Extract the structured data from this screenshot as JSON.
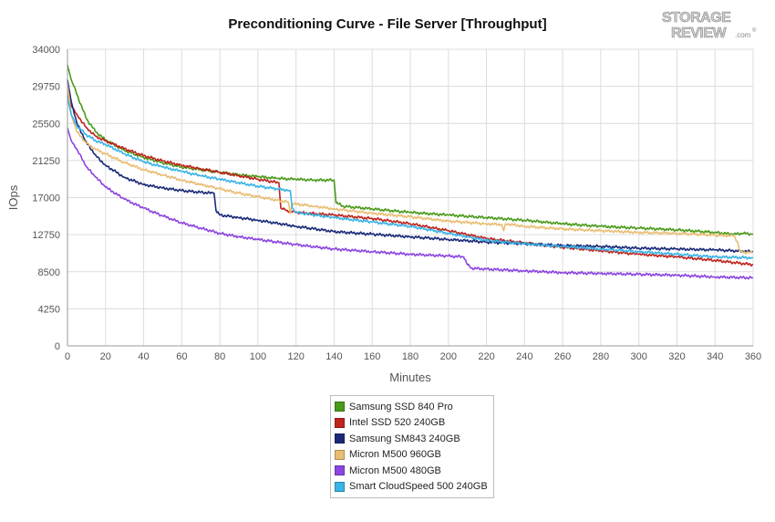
{
  "title": "Preconditioning Curve - File Server [Throughput]",
  "logo": {
    "line1": "STORAGE",
    "line2": "REVIEW",
    "suffix": ".com",
    "mark": "®"
  },
  "chart_data": {
    "type": "line",
    "title": "Preconditioning Curve - File Server [Throughput]",
    "xlabel": "Minutes",
    "ylabel": "IOps",
    "xlim": [
      0,
      360
    ],
    "ylim": [
      0,
      34000
    ],
    "x_ticks": [
      0,
      20,
      40,
      60,
      80,
      100,
      120,
      140,
      160,
      180,
      200,
      220,
      240,
      260,
      280,
      300,
      320,
      340,
      360
    ],
    "y_ticks": [
      0,
      4250,
      8500,
      12750,
      17000,
      21250,
      25500,
      29750,
      34000
    ],
    "grid": true,
    "legend_position": "bottom-center",
    "series": [
      {
        "name": "Samsung SSD 840 Pro",
        "color": "#4a9a1a",
        "points": [
          [
            0,
            32200
          ],
          [
            2,
            30500
          ],
          [
            5,
            28800
          ],
          [
            10,
            26000
          ],
          [
            15,
            24500
          ],
          [
            20,
            23600
          ],
          [
            30,
            22400
          ],
          [
            40,
            21600
          ],
          [
            50,
            21000
          ],
          [
            60,
            20500
          ],
          [
            70,
            20200
          ],
          [
            80,
            19900
          ],
          [
            90,
            19600
          ],
          [
            100,
            19400
          ],
          [
            110,
            19200
          ],
          [
            120,
            19100
          ],
          [
            130,
            19000
          ],
          [
            140,
            19000
          ],
          [
            141,
            16400
          ],
          [
            145,
            16000
          ],
          [
            160,
            15700
          ],
          [
            180,
            15300
          ],
          [
            200,
            15000
          ],
          [
            220,
            14700
          ],
          [
            240,
            14400
          ],
          [
            260,
            14000
          ],
          [
            280,
            13700
          ],
          [
            300,
            13500
          ],
          [
            320,
            13300
          ],
          [
            340,
            13000
          ],
          [
            350,
            12800
          ],
          [
            355,
            12900
          ],
          [
            360,
            12800
          ]
        ]
      },
      {
        "name": "Intel SSD 520 240GB",
        "color": "#c0231c",
        "points": [
          [
            0,
            29000
          ],
          [
            2,
            27500
          ],
          [
            5,
            26500
          ],
          [
            10,
            25000
          ],
          [
            15,
            24000
          ],
          [
            20,
            23500
          ],
          [
            30,
            22600
          ],
          [
            40,
            21800
          ],
          [
            50,
            21200
          ],
          [
            60,
            20700
          ],
          [
            70,
            20300
          ],
          [
            80,
            19900
          ],
          [
            90,
            19500
          ],
          [
            100,
            19100
          ],
          [
            111,
            18700
          ],
          [
            112,
            15800
          ],
          [
            115,
            15500
          ],
          [
            120,
            15300
          ],
          [
            140,
            15000
          ],
          [
            160,
            14600
          ],
          [
            180,
            14000
          ],
          [
            200,
            13200
          ],
          [
            220,
            12300
          ],
          [
            240,
            11800
          ],
          [
            260,
            11300
          ],
          [
            280,
            10900
          ],
          [
            300,
            10500
          ],
          [
            320,
            10200
          ],
          [
            340,
            9800
          ],
          [
            360,
            9300
          ]
        ]
      },
      {
        "name": "Samsung SM843 240GB",
        "color": "#1a2a78",
        "points": [
          [
            0,
            30500
          ],
          [
            2,
            28000
          ],
          [
            5,
            25500
          ],
          [
            10,
            23300
          ],
          [
            15,
            21800
          ],
          [
            20,
            20700
          ],
          [
            30,
            19300
          ],
          [
            40,
            18500
          ],
          [
            50,
            18100
          ],
          [
            60,
            17800
          ],
          [
            70,
            17600
          ],
          [
            77,
            17500
          ],
          [
            78,
            15500
          ],
          [
            80,
            15000
          ],
          [
            90,
            14700
          ],
          [
            100,
            14400
          ],
          [
            120,
            13700
          ],
          [
            140,
            13100
          ],
          [
            160,
            12800
          ],
          [
            180,
            12500
          ],
          [
            200,
            12200
          ],
          [
            220,
            11900
          ],
          [
            240,
            11700
          ],
          [
            260,
            11500
          ],
          [
            280,
            11400
          ],
          [
            300,
            11200
          ],
          [
            320,
            11100
          ],
          [
            340,
            11000
          ],
          [
            360,
            10800
          ]
        ]
      },
      {
        "name": "Micron M500 960GB",
        "color": "#e9bd73",
        "points": [
          [
            0,
            30000
          ],
          [
            2,
            26500
          ],
          [
            5,
            24500
          ],
          [
            10,
            23200
          ],
          [
            15,
            22500
          ],
          [
            20,
            22000
          ],
          [
            30,
            21000
          ],
          [
            40,
            20200
          ],
          [
            50,
            19600
          ],
          [
            60,
            19000
          ],
          [
            70,
            18500
          ],
          [
            80,
            18000
          ],
          [
            90,
            17500
          ],
          [
            100,
            17100
          ],
          [
            110,
            16700
          ],
          [
            116,
            16500
          ],
          [
            117,
            15200
          ],
          [
            118,
            16300
          ],
          [
            130,
            16000
          ],
          [
            140,
            15700
          ],
          [
            160,
            15200
          ],
          [
            180,
            14800
          ],
          [
            200,
            14300
          ],
          [
            220,
            14000
          ],
          [
            228,
            13900
          ],
          [
            229,
            13200
          ],
          [
            230,
            14000
          ],
          [
            240,
            13700
          ],
          [
            260,
            13400
          ],
          [
            280,
            13200
          ],
          [
            300,
            13000
          ],
          [
            320,
            12900
          ],
          [
            340,
            12700
          ],
          [
            350,
            12600
          ],
          [
            352,
            11800
          ],
          [
            353,
            10800
          ],
          [
            355,
            10700
          ],
          [
            360,
            10700
          ]
        ]
      },
      {
        "name": "Micron M500 480GB",
        "color": "#8c45e0",
        "points": [
          [
            0,
            25000
          ],
          [
            2,
            23500
          ],
          [
            5,
            22500
          ],
          [
            10,
            20500
          ],
          [
            15,
            19300
          ],
          [
            20,
            18200
          ],
          [
            30,
            16800
          ],
          [
            40,
            15800
          ],
          [
            50,
            14900
          ],
          [
            60,
            14100
          ],
          [
            70,
            13500
          ],
          [
            80,
            12900
          ],
          [
            90,
            12500
          ],
          [
            100,
            12200
          ],
          [
            120,
            11600
          ],
          [
            140,
            11100
          ],
          [
            160,
            10800
          ],
          [
            180,
            10500
          ],
          [
            200,
            10300
          ],
          [
            208,
            10200
          ],
          [
            210,
            9300
          ],
          [
            212,
            8900
          ],
          [
            220,
            8800
          ],
          [
            240,
            8600
          ],
          [
            260,
            8400
          ],
          [
            280,
            8300
          ],
          [
            300,
            8200
          ],
          [
            320,
            8100
          ],
          [
            340,
            7900
          ],
          [
            360,
            7800
          ]
        ]
      },
      {
        "name": "Smart CloudSpeed 500 240GB",
        "color": "#3ab3e6",
        "points": [
          [
            0,
            28500
          ],
          [
            2,
            26500
          ],
          [
            5,
            25200
          ],
          [
            10,
            24200
          ],
          [
            15,
            23500
          ],
          [
            20,
            23100
          ],
          [
            30,
            22000
          ],
          [
            40,
            21100
          ],
          [
            50,
            20500
          ],
          [
            60,
            20000
          ],
          [
            70,
            19500
          ],
          [
            80,
            19100
          ],
          [
            90,
            18700
          ],
          [
            100,
            18300
          ],
          [
            110,
            18000
          ],
          [
            117,
            17800
          ],
          [
            118,
            15800
          ],
          [
            120,
            15300
          ],
          [
            140,
            14700
          ],
          [
            160,
            14200
          ],
          [
            180,
            13700
          ],
          [
            200,
            12900
          ],
          [
            220,
            12100
          ],
          [
            240,
            11700
          ],
          [
            260,
            11400
          ],
          [
            280,
            11100
          ],
          [
            300,
            10800
          ],
          [
            320,
            10500
          ],
          [
            340,
            10200
          ],
          [
            360,
            10100
          ]
        ]
      }
    ]
  }
}
